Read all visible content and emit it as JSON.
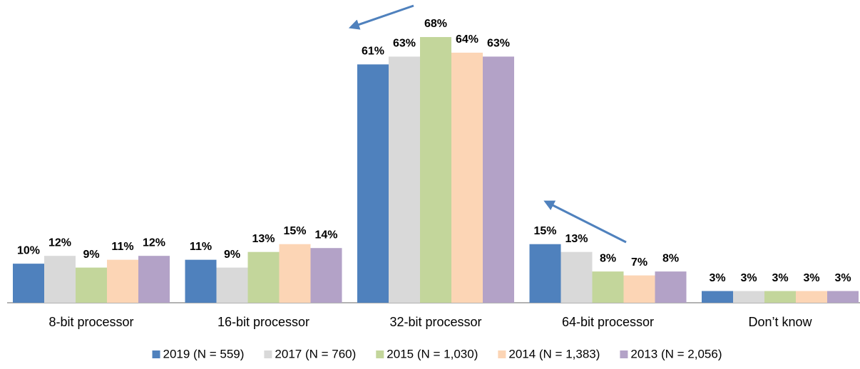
{
  "chart_data": {
    "type": "bar",
    "categories": [
      "8-bit processor",
      "16-bit processor",
      "32-bit processor",
      "64-bit processor",
      "Don’t know"
    ],
    "series": [
      {
        "name": "2019 (N = 559)",
        "color": "#4f81bd",
        "values": [
          10,
          11,
          61,
          15,
          3
        ],
        "value_labels": [
          "10%",
          "11%",
          "61%",
          "15%",
          "3%"
        ]
      },
      {
        "name": "2017 (N = 760)",
        "color": "#d9d9d9",
        "values": [
          12,
          9,
          63,
          13,
          3
        ],
        "value_labels": [
          "12%",
          "9%",
          "63%",
          "13%",
          "3%"
        ]
      },
      {
        "name": "2015 (N = 1,030)",
        "color": "#c3d69b",
        "values": [
          9,
          13,
          68,
          8,
          3
        ],
        "value_labels": [
          "9%",
          "13%",
          "68%",
          "8%",
          "3%"
        ]
      },
      {
        "name": "2014 (N = 1,383)",
        "color": "#fcd5b5",
        "values": [
          11,
          15,
          64,
          7,
          3
        ],
        "value_labels": [
          "11%",
          "15%",
          "64%",
          "7%",
          "3%"
        ]
      },
      {
        "name": "2013 (N = 2,056)",
        "color": "#b3a2c7",
        "values": [
          12,
          14,
          63,
          8,
          3
        ],
        "value_labels": [
          "12%",
          "14%",
          "63%",
          "8%",
          "3%"
        ]
      }
    ],
    "legend": "bottom"
  }
}
